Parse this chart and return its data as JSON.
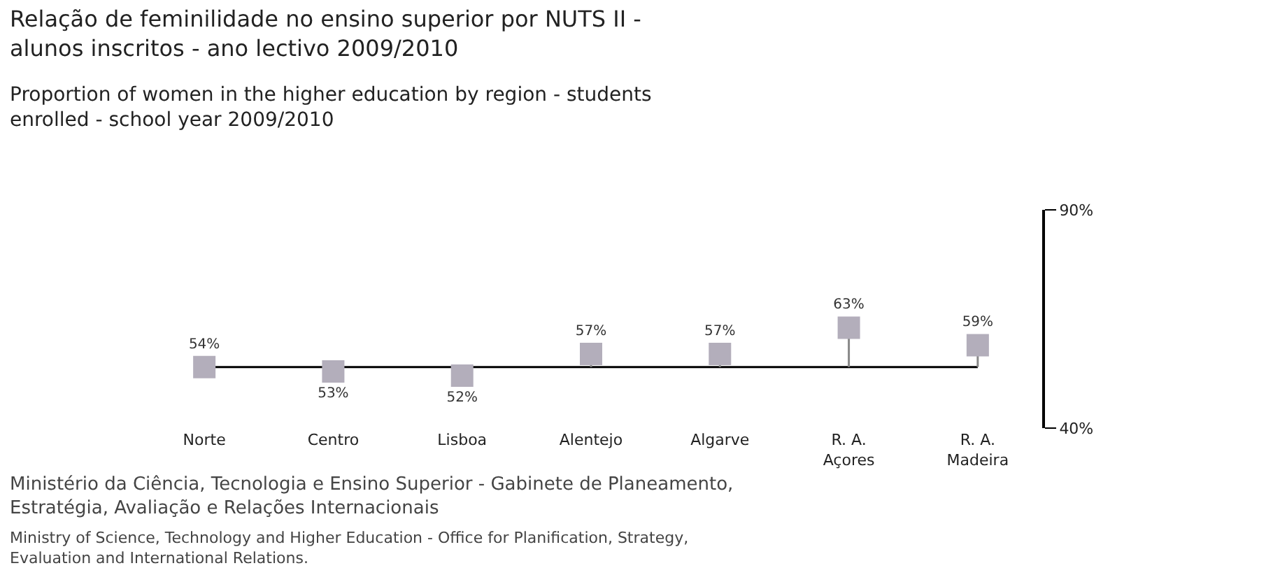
{
  "chart_data": {
    "type": "lollipop",
    "title": "Relação de feminilidade no ensino superior por NUTS II -\nalunos inscritos - ano lectivo 2009/2010",
    "subtitle": "Proportion of women in the higher education by region - students\nenrolled - school year 2009/2010",
    "categories": [
      "Norte",
      "Centro",
      "Lisboa",
      "Alentejo",
      "Algarve",
      "R. A.\nAçores",
      "R. A.\nMadeira"
    ],
    "values": [
      54,
      53,
      52,
      57,
      57,
      63,
      59
    ],
    "value_labels": [
      "54%",
      "53%",
      "52%",
      "57%",
      "57%",
      "63%",
      "59%"
    ],
    "color": "#b3aebb",
    "marker": "square",
    "ylim": [
      40,
      90
    ],
    "yticks": [
      {
        "value": 40,
        "label": "40%"
      },
      {
        "value": 90,
        "label": "90%"
      }
    ],
    "ref_lines": [
      {
        "axis": "y",
        "value": 54,
        "color": "#000000"
      }
    ],
    "annotations": [
      "Ministério da Ciência, Tecnologia e Ensino Superior - Gabinete de Planeamento,\nEstratégia, Avaliação e Relações Internacionais",
      "Ministry of Science, Technology and Higher Education - Office for Planification, Strategy,\nEvaluation and International Relations."
    ]
  }
}
